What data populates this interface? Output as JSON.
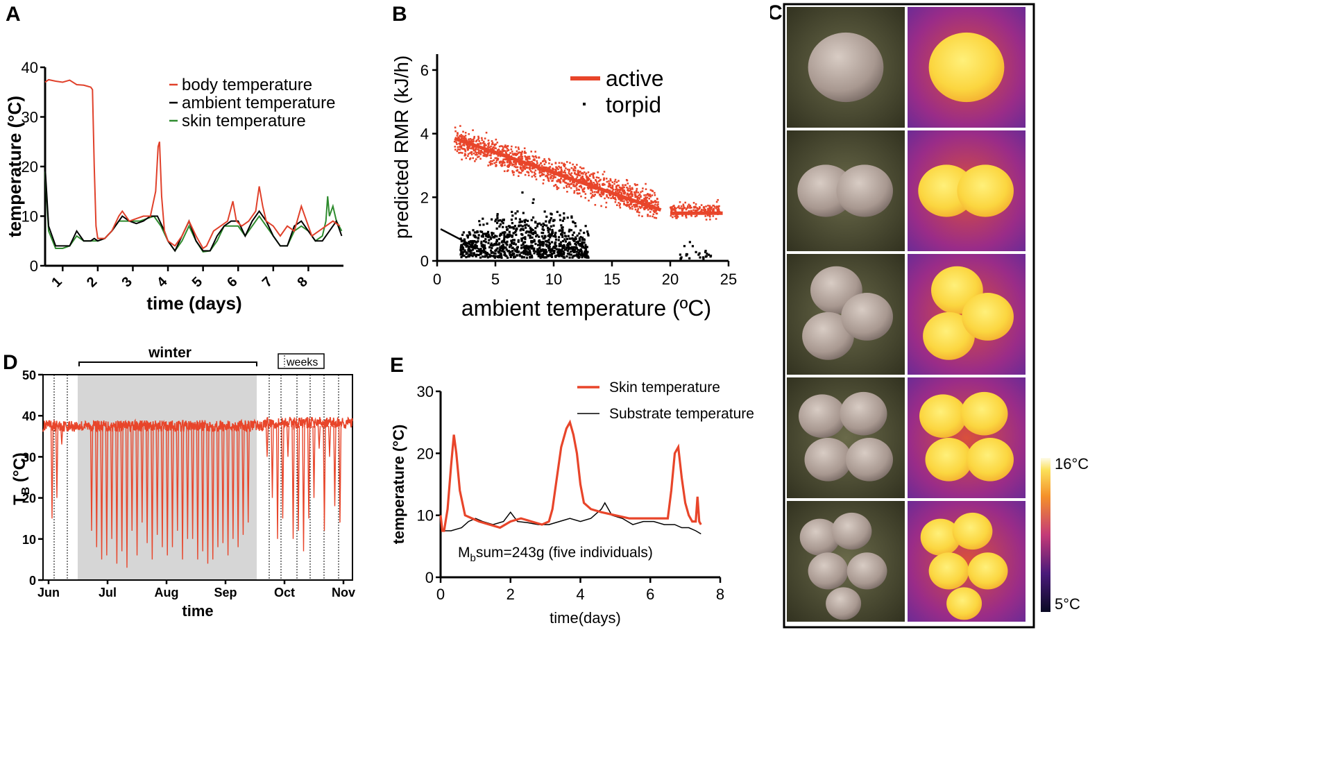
{
  "figure": {
    "panel_labels": [
      "A",
      "B",
      "C",
      "D",
      "E"
    ]
  },
  "chart_data": [
    {
      "id": "A",
      "type": "line",
      "xlabel": "time (days)",
      "ylabel": "temperature (°C)",
      "xlim": [
        0.5,
        9.0
      ],
      "ylim": [
        0,
        40
      ],
      "xticks": [
        1,
        2,
        3,
        4,
        5,
        6,
        7,
        8
      ],
      "yticks": [
        0,
        10,
        20,
        30,
        40
      ],
      "legend_position": "top-right",
      "series": [
        {
          "name": "body temperature",
          "color": "#e0402a",
          "x": [
            0.5,
            0.6,
            0.8,
            1.0,
            1.2,
            1.4,
            1.6,
            1.8,
            1.85,
            1.9,
            1.95,
            2.0,
            2.2,
            2.4,
            2.6,
            2.7,
            2.9,
            3.1,
            3.3,
            3.5,
            3.65,
            3.72,
            3.76,
            3.82,
            3.9,
            4.0,
            4.1,
            4.2,
            4.4,
            4.6,
            4.8,
            5.0,
            5.1,
            5.3,
            5.5,
            5.7,
            5.85,
            5.95,
            6.1,
            6.3,
            6.5,
            6.6,
            6.7,
            6.8,
            7.0,
            7.2,
            7.4,
            7.6,
            7.8,
            7.95,
            8.1,
            8.3,
            8.5,
            8.7,
            8.9
          ],
          "y": [
            37,
            37.5,
            37.2,
            37,
            37.4,
            36.5,
            36.4,
            36,
            35.5,
            20,
            8,
            5.5,
            5.5,
            7,
            10,
            11,
            9,
            9.5,
            10,
            10,
            15,
            24,
            25,
            14,
            7,
            5,
            4.5,
            4,
            6,
            9,
            6,
            3.5,
            4,
            7,
            8,
            9,
            13,
            9,
            8,
            9,
            11,
            16,
            12,
            9,
            8,
            6,
            8,
            7,
            12,
            9,
            6,
            7,
            8,
            9,
            8
          ]
        },
        {
          "name": "ambient temperature",
          "color": "#000000",
          "x": [
            0.5,
            0.6,
            0.8,
            1.0,
            1.2,
            1.4,
            1.6,
            1.8,
            1.9,
            2.0,
            2.2,
            2.4,
            2.6,
            2.7,
            2.9,
            3.1,
            3.3,
            3.5,
            3.7,
            3.9,
            4.0,
            4.2,
            4.4,
            4.6,
            4.8,
            5.0,
            5.2,
            5.4,
            5.6,
            5.8,
            6.0,
            6.2,
            6.4,
            6.6,
            6.8,
            7.0,
            7.2,
            7.4,
            7.6,
            7.8,
            8.0,
            8.2,
            8.4,
            8.6,
            8.8,
            8.95
          ],
          "y": [
            20,
            8,
            4,
            4,
            4,
            7,
            5,
            5,
            5.5,
            5,
            5.5,
            7,
            9,
            10,
            9,
            8.5,
            9,
            10,
            10,
            7,
            5,
            3,
            6,
            9,
            5,
            3,
            3,
            6,
            8,
            9,
            9,
            6,
            9,
            11,
            9,
            6,
            4,
            4,
            8,
            9,
            7,
            5,
            5,
            7,
            9,
            6
          ]
        },
        {
          "name": "skin temperature",
          "color": "#2e8b2e",
          "x": [
            0.5,
            0.6,
            0.8,
            1.0,
            1.2,
            1.4,
            1.6,
            1.8,
            2.0,
            2.2,
            2.4,
            2.6,
            2.8,
            3.0,
            3.2,
            3.4,
            3.6,
            3.8,
            4.0,
            4.2,
            4.4,
            4.6,
            4.8,
            5.0,
            5.2,
            5.4,
            5.6,
            5.8,
            6.0,
            6.2,
            6.4,
            6.6,
            6.8,
            7.0,
            7.2,
            7.4,
            7.6,
            7.8,
            8.0,
            8.2,
            8.4,
            8.5,
            8.55,
            8.6,
            8.7,
            8.8,
            8.95
          ],
          "y": [
            19,
            7,
            3.5,
            3.5,
            4,
            6,
            5,
            5,
            5,
            5.5,
            7,
            9,
            9,
            9,
            9,
            9.5,
            10,
            8,
            5,
            3,
            5,
            8,
            5,
            2.8,
            3,
            5,
            8,
            8,
            8,
            6,
            8,
            10,
            8,
            6,
            4,
            4,
            7,
            8,
            7,
            5,
            6,
            9,
            14,
            10,
            12,
            9,
            7
          ]
        }
      ]
    },
    {
      "id": "B",
      "type": "scatter",
      "xlabel": "ambient temperature (ºC)",
      "ylabel": "predicted RMR (kJ/h)",
      "xlim": [
        0,
        25
      ],
      "ylim": [
        0,
        6.5
      ],
      "xticks": [
        0,
        5,
        10,
        15,
        20,
        25
      ],
      "yticks": [
        0,
        2,
        4,
        6
      ],
      "legend_position": "top-right",
      "series": [
        {
          "name": "active",
          "color": "#e8452a",
          "clouds": [
            {
              "x": [
                1.5,
                19
              ],
              "center": [
                3.8,
                1.7
              ],
              "spread": 0.35,
              "count": 1400
            },
            {
              "x": [
                20,
                24.3
              ],
              "center": [
                1.6,
                1.6
              ],
              "spread": 0.2,
              "count": 180
            }
          ],
          "fit_lines": [
            {
              "x": [
                1.5,
                19.2
              ],
              "y": [
                3.85,
                1.6
              ]
            },
            {
              "x": [
                20,
                24.5
              ],
              "y": [
                1.5,
                1.5
              ]
            }
          ]
        },
        {
          "name": "torpid",
          "color": "#000000",
          "clouds": [
            {
              "x": [
                2,
                13
              ],
              "center": [
                1.0,
                1.0
              ],
              "spread": 0.9,
              "count": 900
            },
            {
              "x": [
                20.8,
                23.5
              ],
              "center": [
                0.4,
                0.4
              ],
              "spread": 0.3,
              "count": 25
            }
          ],
          "fit_lines": [
            {
              "x": [
                0.3,
                5
              ],
              "y": [
                1.0,
                0.1
              ]
            }
          ]
        }
      ]
    },
    {
      "id": "D",
      "type": "line",
      "xlabel": "time",
      "ylabel": "T",
      "ylabel_sub": "B",
      "ylabel_unit": "(°C)",
      "ylim": [
        0,
        50
      ],
      "yticks": [
        0,
        10,
        20,
        30,
        40,
        50
      ],
      "month_ticks": [
        "Jun",
        "Jul",
        "Aug",
        "Sep",
        "Oct",
        "Nov"
      ],
      "winter_label": "winter",
      "weeks_label": "weeks",
      "series": [
        {
          "name": "TB",
          "color": "#e8452a",
          "baseline": 37.5,
          "drop_minima": [
            15,
            20,
            33,
            12,
            8,
            5,
            6,
            10,
            4,
            7,
            3,
            12,
            6,
            14,
            9,
            5,
            11,
            8,
            6,
            8,
            12,
            5,
            10,
            10,
            5,
            7,
            4,
            5,
            8,
            9,
            6,
            10,
            8,
            11,
            14,
            30,
            20,
            10,
            15,
            30,
            10,
            12,
            7,
            15,
            20,
            32,
            12,
            30,
            18,
            14
          ]
        }
      ]
    },
    {
      "id": "E",
      "type": "line",
      "xlabel": "time(days)",
      "ylabel": "temperature (°C)",
      "xlim": [
        0,
        8
      ],
      "ylim": [
        0,
        30
      ],
      "xticks": [
        0,
        2,
        4,
        6,
        8
      ],
      "yticks": [
        0,
        10,
        20,
        30
      ],
      "annotation": {
        "main": "M",
        "sub": "b",
        "rest": "sum=243g (five individuals)"
      },
      "series": [
        {
          "name": "Skin temperature",
          "color": "#e8452a",
          "x": [
            0,
            0.05,
            0.1,
            0.2,
            0.3,
            0.38,
            0.45,
            0.55,
            0.7,
            0.9,
            1.1,
            1.4,
            1.7,
            2.0,
            2.3,
            2.6,
            2.9,
            3.1,
            3.2,
            3.3,
            3.45,
            3.6,
            3.7,
            3.8,
            3.9,
            4.0,
            4.1,
            4.3,
            4.6,
            5.0,
            5.4,
            5.8,
            6.2,
            6.5,
            6.6,
            6.7,
            6.8,
            6.9,
            7.0,
            7.1,
            7.2,
            7.3,
            7.35,
            7.4,
            7.45
          ],
          "y": [
            10,
            7.5,
            7.5,
            11,
            18,
            23,
            20,
            14,
            10,
            9.5,
            9,
            8.5,
            8,
            9,
            9.5,
            9,
            8.5,
            9,
            11,
            15,
            21,
            24,
            25,
            23,
            20,
            15,
            12,
            11,
            10.5,
            10,
            9.5,
            9.5,
            9.5,
            9.5,
            14,
            20,
            21,
            16,
            12,
            10,
            9,
            9,
            13,
            9,
            8.5
          ]
        },
        {
          "name": "Substrate temperature",
          "color": "#000000",
          "x": [
            0,
            0.3,
            0.6,
            0.8,
            1.0,
            1.2,
            1.5,
            1.8,
            2.0,
            2.2,
            2.5,
            2.8,
            3.1,
            3.4,
            3.7,
            4.0,
            4.3,
            4.6,
            4.7,
            4.9,
            5.2,
            5.5,
            5.8,
            6.1,
            6.4,
            6.7,
            6.9,
            7.1,
            7.3,
            7.45
          ],
          "y": [
            7.5,
            7.5,
            8,
            9,
            9.5,
            9,
            8.5,
            9,
            10.5,
            9,
            8.8,
            8.5,
            8.5,
            9,
            9.5,
            9,
            9.5,
            11,
            12,
            10,
            9.5,
            8.5,
            9,
            9,
            8.5,
            8.5,
            8,
            8,
            7.5,
            7
          ]
        }
      ]
    }
  ],
  "panel_c": {
    "colorbar_max": "16°C",
    "colorbar_min": "5°C",
    "rows": [
      {
        "animals": 1,
        "shape": "single"
      },
      {
        "animals": 2,
        "shape": "pair"
      },
      {
        "animals": 3,
        "shape": "trio"
      },
      {
        "animals": 4,
        "shape": "quad"
      },
      {
        "animals": 5,
        "shape": "five"
      }
    ]
  }
}
